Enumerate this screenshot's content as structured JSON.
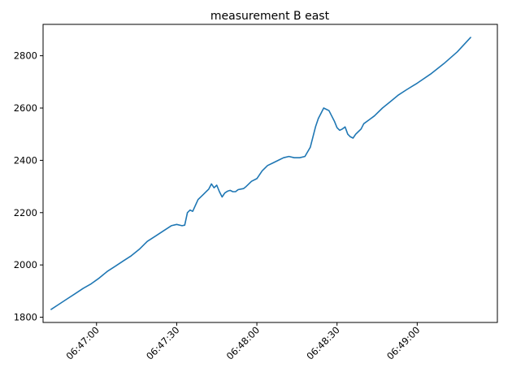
{
  "chart_data": {
    "type": "line",
    "title": "measurement B east",
    "xlabel": "",
    "ylabel": "",
    "x_axis_type": "time",
    "xlim": [
      "06:46:40",
      "06:49:30"
    ],
    "ylim": [
      1780,
      2920
    ],
    "x_ticks": [
      "06:47:00",
      "06:47:30",
      "06:48:00",
      "06:48:30",
      "06:49:00"
    ],
    "y_ticks": [
      1800,
      2000,
      2200,
      2400,
      2600,
      2800
    ],
    "grid": false,
    "legend": "none",
    "tick_label_rotation": 45,
    "color": "#1f77b4",
    "series": [
      {
        "x": [
          "06:46:43",
          "06:46:46",
          "06:46:49",
          "06:46:52",
          "06:46:55",
          "06:46:58",
          "06:47:01",
          "06:47:04",
          "06:47:07",
          "06:47:10",
          "06:47:13",
          "06:47:16",
          "06:47:19",
          "06:47:22",
          "06:47:25",
          "06:47:28",
          "06:47:30",
          "06:47:32",
          "06:47:33",
          "06:47:34",
          "06:47:35",
          "06:47:36",
          "06:47:38",
          "06:47:40",
          "06:47:42",
          "06:47:43",
          "06:47:44",
          "06:47:45",
          "06:47:46",
          "06:47:47",
          "06:47:48",
          "06:47:49",
          "06:47:50",
          "06:47:51",
          "06:47:52",
          "06:47:53",
          "06:47:54",
          "06:47:55",
          "06:47:56",
          "06:47:58",
          "06:48:00",
          "06:48:02",
          "06:48:04",
          "06:48:06",
          "06:48:08",
          "06:48:10",
          "06:48:12",
          "06:48:14",
          "06:48:16",
          "06:48:18",
          "06:48:20",
          "06:48:21",
          "06:48:22",
          "06:48:23",
          "06:48:24",
          "06:48:25",
          "06:48:26",
          "06:48:27",
          "06:48:28",
          "06:48:29",
          "06:48:30",
          "06:48:31",
          "06:48:32",
          "06:48:33",
          "06:48:34",
          "06:48:35",
          "06:48:36",
          "06:48:37",
          "06:48:38",
          "06:48:39",
          "06:48:40",
          "06:48:42",
          "06:48:44",
          "06:48:47",
          "06:48:50",
          "06:48:53",
          "06:48:56",
          "06:49:00",
          "06:49:05",
          "06:49:10",
          "06:49:15",
          "06:49:20"
        ],
        "values": [
          1830,
          1850,
          1870,
          1890,
          1910,
          1928,
          1950,
          1975,
          1995,
          2015,
          2035,
          2060,
          2090,
          2110,
          2130,
          2150,
          2155,
          2150,
          2152,
          2200,
          2210,
          2205,
          2250,
          2270,
          2290,
          2310,
          2295,
          2305,
          2280,
          2260,
          2275,
          2282,
          2285,
          2280,
          2280,
          2288,
          2290,
          2292,
          2300,
          2320,
          2330,
          2360,
          2380,
          2390,
          2400,
          2410,
          2415,
          2410,
          2410,
          2415,
          2450,
          2490,
          2530,
          2560,
          2580,
          2600,
          2595,
          2590,
          2570,
          2550,
          2525,
          2515,
          2520,
          2528,
          2500,
          2490,
          2485,
          2500,
          2510,
          2520,
          2540,
          2555,
          2570,
          2600,
          2625,
          2650,
          2670,
          2695,
          2730,
          2770,
          2815,
          2870
        ]
      }
    ]
  }
}
